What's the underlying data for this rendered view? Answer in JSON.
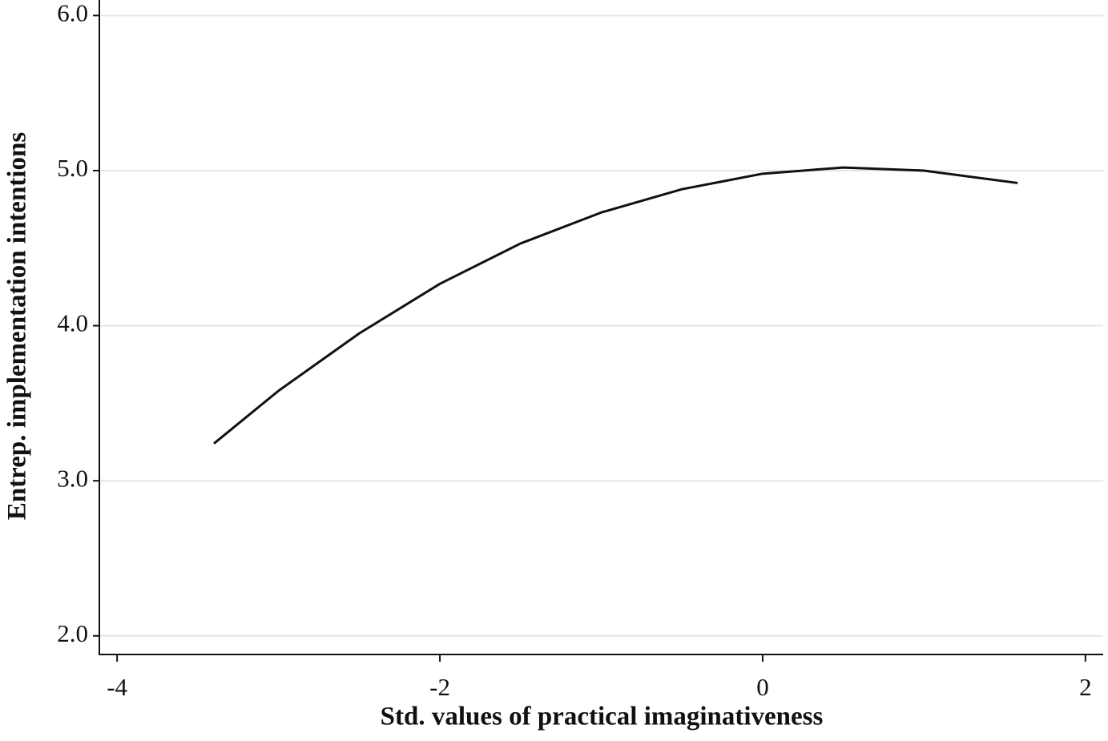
{
  "chart_data": {
    "type": "line",
    "x_label": "Std. values of practical imaginativeness",
    "y_label": "Entrep. implementation intentions",
    "x": [
      -3.4,
      -3,
      -2.5,
      -2,
      -1.5,
      -1,
      -0.5,
      0,
      0.5,
      1,
      1.58
    ],
    "series": [
      {
        "color": "#111111",
        "values": [
          3.24,
          3.58,
          3.95,
          4.27,
          4.53,
          4.73,
          4.88,
          4.98,
          5.02,
          5.0,
          4.92
        ]
      }
    ],
    "xlim": [
      -4.11,
      2.11
    ],
    "ylim": [
      1.88,
      6.1
    ],
    "xticks": [
      -4,
      -2,
      0,
      2
    ],
    "yticks": [
      {
        "value": 2,
        "label": "2.0"
      },
      {
        "value": 3,
        "label": "3.0"
      },
      {
        "value": 4,
        "label": "4.0"
      },
      {
        "value": 5,
        "label": "5.0"
      },
      {
        "value": 6,
        "label": "6.0"
      }
    ],
    "grid": true
  }
}
